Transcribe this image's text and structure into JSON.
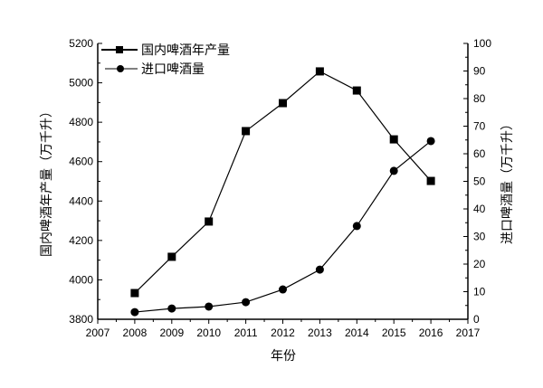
{
  "chart_data": {
    "type": "line",
    "title": "",
    "xlabel": "年份",
    "ylabel": "国内啤酒年产量（万千升）",
    "y2label": "进口啤酒量（万千升）",
    "xlim": [
      2007,
      2017
    ],
    "ylim": [
      3800,
      5200
    ],
    "y2lim": [
      0,
      100
    ],
    "x_ticks": [
      "2007",
      "2008",
      "2009",
      "2010",
      "2011",
      "2012",
      "2013",
      "2014",
      "2015",
      "2016",
      "2017"
    ],
    "y_ticks": [
      "3800",
      "4000",
      "4200",
      "4400",
      "4600",
      "4800",
      "5000",
      "5200"
    ],
    "y2_ticks": [
      "0",
      "10",
      "20",
      "30",
      "40",
      "50",
      "60",
      "70",
      "80",
      "90",
      "100"
    ],
    "legend_position": "top-left",
    "grid": false,
    "x": [
      2008,
      2009,
      2010,
      2011,
      2012,
      2013,
      2014,
      2015,
      2016
    ],
    "series": [
      {
        "name": "国内啤酒年产量",
        "axis": "left",
        "marker": "square",
        "values": [
          3933,
          4117,
          4296,
          4755,
          4897,
          5058,
          4961,
          4713,
          4502
        ]
      },
      {
        "name": "进口啤酒量",
        "axis": "right",
        "marker": "circle",
        "values": [
          2.6,
          3.9,
          4.6,
          6.2,
          10.8,
          18.0,
          33.8,
          53.8,
          64.6
        ]
      }
    ],
    "colors": {
      "line": "#000000"
    }
  }
}
